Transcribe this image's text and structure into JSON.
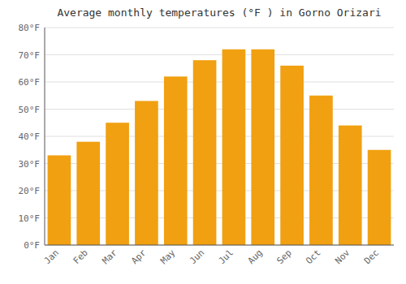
{
  "chart_data": {
    "type": "bar",
    "title": "Average monthly temperatures (°F ) in Gorno Orizari",
    "categories": [
      "Jan",
      "Feb",
      "Mar",
      "Apr",
      "May",
      "Jun",
      "Jul",
      "Aug",
      "Sep",
      "Oct",
      "Nov",
      "Dec"
    ],
    "values": [
      33,
      38,
      45,
      53,
      62,
      68,
      72,
      72,
      66,
      55,
      44,
      35
    ],
    "color": "#F0A010",
    "ylim": [
      0,
      80
    ],
    "yticks": [
      {
        "value": 0,
        "label": "0°F"
      },
      {
        "value": 10,
        "label": "10°F"
      },
      {
        "value": 20,
        "label": "20°F"
      },
      {
        "value": 30,
        "label": "30°F"
      },
      {
        "value": 40,
        "label": "40°F"
      },
      {
        "value": 50,
        "label": "50°F"
      },
      {
        "value": 60,
        "label": "60°F"
      },
      {
        "value": 70,
        "label": "70°F"
      },
      {
        "value": 80,
        "label": "80°F"
      }
    ],
    "grid": true
  }
}
